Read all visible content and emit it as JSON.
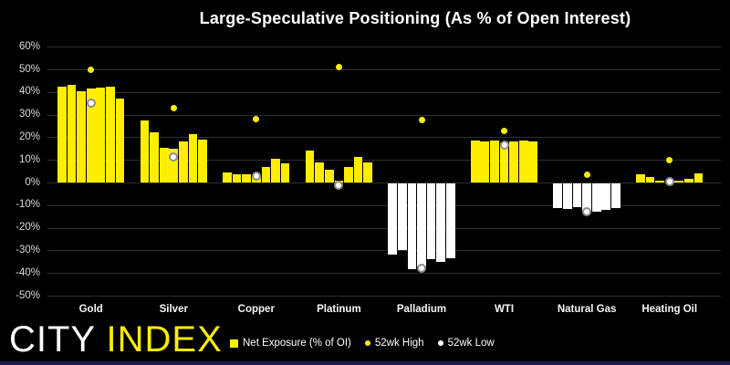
{
  "title": "Large-Speculative Positioning (As % of Open Interest)",
  "logo": {
    "city": "CITY",
    "index": "INDEX"
  },
  "colors": {
    "background": "#000000",
    "positive_bar": "#ffee00",
    "negative_bar": "#ffffff",
    "gridline": "#2e2e2e",
    "axis_text": "#d9d9d9",
    "category_text": "#f5f5f5",
    "title_text": "#ffffff",
    "high_marker": "#ffee00",
    "low_marker": "#ffffff",
    "footer_strip": "#1a1a4e"
  },
  "legend": [
    {
      "label": "Net Exposure (% of OI)",
      "marker": "square",
      "color": "#ffee00"
    },
    {
      "label": "52wk High",
      "marker": "dot",
      "color": "#ffee00"
    },
    {
      "label": "52wk Low",
      "marker": "dot",
      "color": "#ffffff"
    }
  ],
  "chart_data": {
    "type": "bar",
    "title": "Large-Speculative Positioning (As % of Open Interest)",
    "ylabel": "",
    "ylim": [
      -50,
      60
    ],
    "ytick_step": 10,
    "ytick_format": "percent",
    "grid": true,
    "legend_position": "bottom",
    "bars_per_group": 7,
    "categories": [
      "Gold",
      "Silver",
      "Copper",
      "Platinum",
      "Palladium",
      "WTI",
      "Natural Gas",
      "Heating Oil"
    ],
    "groups": [
      {
        "name": "Gold",
        "net_exposure_pct": [
          42.5,
          43,
          40.5,
          41.5,
          42,
          42.5,
          37
        ],
        "high_52wk": 50,
        "low_52wk": 35
      },
      {
        "name": "Silver",
        "net_exposure_pct": [
          27.5,
          22,
          15.5,
          15,
          18,
          21.5,
          19
        ],
        "high_52wk": 33,
        "low_52wk": 11.5
      },
      {
        "name": "Copper",
        "net_exposure_pct": [
          4.5,
          3.5,
          3.5,
          3,
          7,
          10.5,
          8.5
        ],
        "high_52wk": 28,
        "low_52wk": 3
      },
      {
        "name": "Platinum",
        "net_exposure_pct": [
          14,
          9,
          5.5,
          1,
          7,
          11.5,
          9
        ],
        "high_52wk": 51,
        "low_52wk": -1
      },
      {
        "name": "Palladium",
        "net_exposure_pct": [
          -31.5,
          -29.5,
          -38,
          -36.5,
          -33.5,
          -34.5,
          -33
        ],
        "high_52wk": 27.5,
        "low_52wk": -38
      },
      {
        "name": "WTI",
        "net_exposure_pct": [
          18.5,
          18,
          18.5,
          17.5,
          18,
          18.5,
          18
        ],
        "high_52wk": 23,
        "low_52wk": 16.5
      },
      {
        "name": "Natural Gas",
        "net_exposure_pct": [
          -11,
          -11.2,
          -10.5,
          -12,
          -12.5,
          -11.8,
          -10.8
        ],
        "high_52wk": 3.5,
        "low_52wk": -13
      },
      {
        "name": "Heating Oil",
        "net_exposure_pct": [
          3.5,
          2.5,
          1,
          0.5,
          1,
          1.5,
          4
        ],
        "high_52wk": 10,
        "low_52wk": 0.5
      }
    ]
  }
}
